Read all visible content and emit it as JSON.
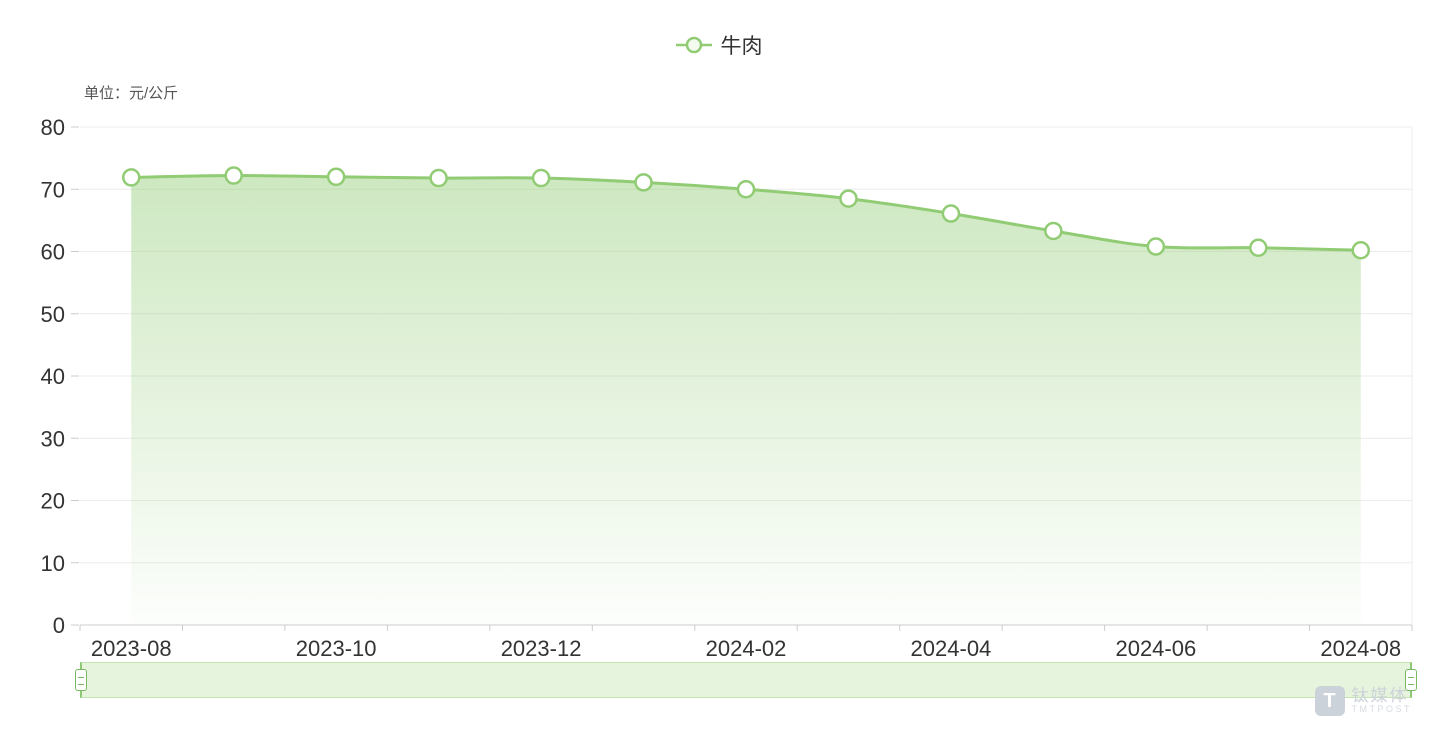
{
  "legend": {
    "label": "牛肉"
  },
  "unit_label": "单位：元/公斤",
  "watermark": {
    "logo_letter": "T",
    "name": "钛媒体",
    "sub": "TMTPOST"
  },
  "colors": {
    "line": "#91cc75",
    "marker_fill": "#ffffff",
    "area_top": "rgba(145,204,117,0.45)",
    "area_bottom": "rgba(145,204,117,0.02)",
    "grid": "#ececec",
    "axis_line": "#cccccc",
    "label": "#333333",
    "slider_fill": "#e7f4dd",
    "slider_border": "#8ec977"
  },
  "chart_data": {
    "type": "area",
    "title": "",
    "x": [
      "2023-08",
      "2023-09",
      "2023-10",
      "2023-11",
      "2023-12",
      "2024-01",
      "2024-02",
      "2024-03",
      "2024-04",
      "2024-05",
      "2024-06",
      "2024-07",
      "2024-08"
    ],
    "x_tick_labels": [
      "2023-08",
      "2023-10",
      "2023-12",
      "2024-02",
      "2024-04",
      "2024-06",
      "2024-08"
    ],
    "series": [
      {
        "name": "牛肉",
        "values": [
          71.9,
          72.2,
          72.0,
          71.8,
          71.8,
          71.1,
          70.0,
          68.5,
          66.1,
          63.3,
          60.8,
          60.6,
          60.2
        ]
      }
    ],
    "xlabel": "",
    "ylabel": "单位：元/公斤",
    "ylim": [
      0,
      80
    ],
    "y_ticks": [
      0,
      10,
      20,
      30,
      40,
      50,
      60,
      70,
      80
    ],
    "grid": true,
    "legend_position": "top",
    "smooth": true,
    "datazoom": true
  }
}
